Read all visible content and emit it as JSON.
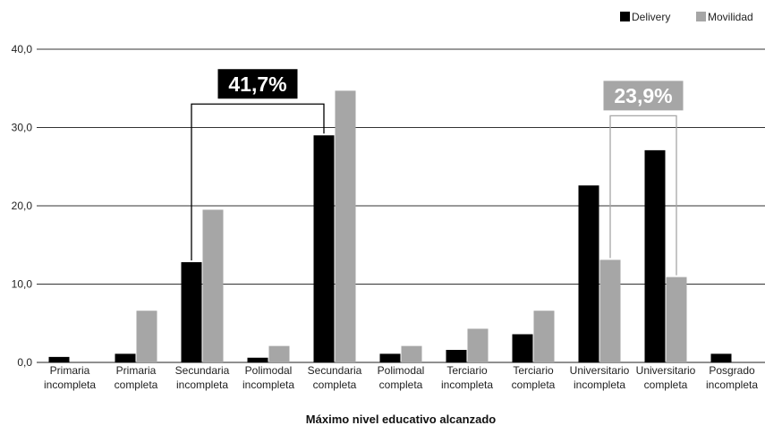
{
  "chart_data": {
    "type": "bar",
    "xlabel": "Máximo nivel educativo alcanzado",
    "ylabel": "",
    "ylim": [
      0,
      40
    ],
    "yticks": [
      "0,0",
      "10,0",
      "20,0",
      "30,0",
      "40,0"
    ],
    "grid": true,
    "legend_position": "top-right",
    "categories": [
      [
        "Primaria",
        "incompleta"
      ],
      [
        "Primaria",
        "completa"
      ],
      [
        "Secundaria",
        "incompleta"
      ],
      [
        "Polimodal",
        "incompleta"
      ],
      [
        "Secundaria",
        "completa"
      ],
      [
        "Polimodal",
        "completa"
      ],
      [
        "Terciario",
        "incompleta"
      ],
      [
        "Terciario",
        "completa"
      ],
      [
        "Universitario",
        "incompleta"
      ],
      [
        "Universitario",
        "completa"
      ],
      [
        "Posgrado",
        "incompleta"
      ]
    ],
    "series": [
      {
        "name": "Delivery",
        "color": "#000000",
        "values": [
          0.7,
          1.1,
          12.8,
          0.6,
          29.0,
          1.1,
          1.6,
          3.6,
          22.6,
          27.1,
          1.1
        ]
      },
      {
        "name": "Movilidad",
        "color": "#a6a6a6",
        "values": [
          0,
          6.6,
          19.5,
          2.1,
          34.7,
          2.1,
          4.3,
          6.6,
          13.1,
          10.9,
          0
        ]
      }
    ],
    "annotations": [
      {
        "text": "41,7%",
        "box_color": "#000000",
        "line_color": "#000000",
        "from_category": 2,
        "to_category": 4,
        "series": 0,
        "bracket_level": 33.0
      },
      {
        "text": "23,9%",
        "box_color": "#a6a6a6",
        "line_color": "#a6a6a6",
        "from_category": 8,
        "to_category": 9,
        "series": 1,
        "bracket_level": 31.5
      }
    ]
  }
}
